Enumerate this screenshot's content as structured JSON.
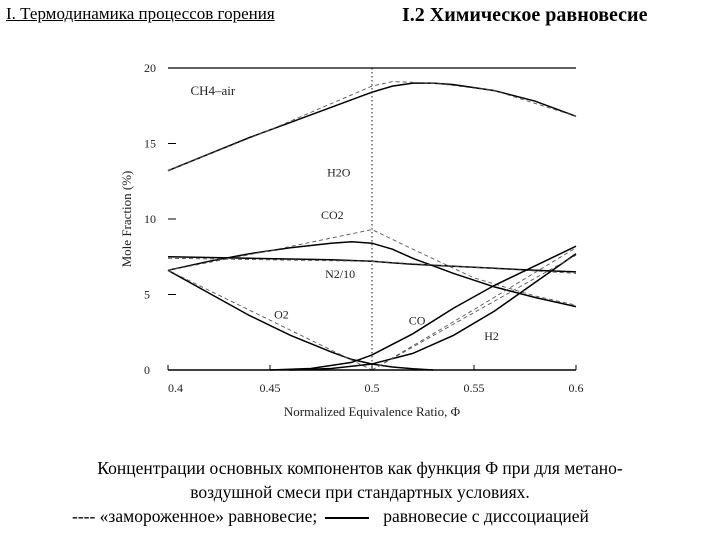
{
  "header": {
    "left": "I. Термодинамика процессов горения",
    "right": "I.2 Химическое равновесие"
  },
  "caption": {
    "line1": "Концентрации основных компонентов как функция Φ при для метано-",
    "line2": "воздушной смеси при стандартных условиях.",
    "line3_frozen": "---- «замороженное» равновесие;",
    "line3_dissoc": "равновесие с диссоциацией"
  },
  "chart_data": {
    "type": "line",
    "xlabel": "Normalized Equivalence Ratio, Φ",
    "ylabel": "Mole Fraction (%)",
    "xlim": [
      0.4,
      0.6
    ],
    "ylim": [
      0,
      20
    ],
    "xticks": [
      "0.4",
      "0.45",
      "0.5",
      "0.55",
      "0.6"
    ],
    "yticks": [
      "0",
      "5",
      "10",
      "15",
      "20"
    ],
    "stoich_x": 0.5,
    "annotation": "CH4–air",
    "series": [
      {
        "name": "H2O",
        "label": "H2O",
        "style": "solid",
        "x": [
          0.4,
          0.42,
          0.44,
          0.46,
          0.48,
          0.5,
          0.51,
          0.52,
          0.53,
          0.54,
          0.56,
          0.58,
          0.6
        ],
        "y": [
          13.2,
          14.3,
          15.4,
          16.4,
          17.4,
          18.4,
          18.8,
          19.0,
          19.0,
          18.9,
          18.5,
          17.8,
          16.8
        ]
      },
      {
        "name": "H2O",
        "label": "",
        "style": "dashed",
        "x": [
          0.4,
          0.45,
          0.5,
          0.51,
          0.53,
          0.56,
          0.6
        ],
        "y": [
          13.2,
          15.9,
          18.8,
          19.1,
          19.0,
          18.5,
          16.8
        ]
      },
      {
        "name": "CO2",
        "label": "CO2",
        "style": "solid",
        "x": [
          0.4,
          0.42,
          0.44,
          0.46,
          0.48,
          0.49,
          0.5,
          0.51,
          0.52,
          0.54,
          0.56,
          0.58,
          0.6
        ],
        "y": [
          6.6,
          7.2,
          7.7,
          8.1,
          8.4,
          8.5,
          8.4,
          8.0,
          7.4,
          6.4,
          5.5,
          4.8,
          4.2
        ]
      },
      {
        "name": "CO2",
        "label": "",
        "style": "dashed",
        "x": [
          0.4,
          0.45,
          0.5,
          0.52,
          0.55,
          0.58,
          0.6
        ],
        "y": [
          6.6,
          7.9,
          9.3,
          8.0,
          6.1,
          4.9,
          4.3
        ]
      },
      {
        "name": "N2/10",
        "label": "N2/10",
        "style": "solid",
        "x": [
          0.4,
          0.44,
          0.48,
          0.5,
          0.52,
          0.55,
          0.58,
          0.6
        ],
        "y": [
          7.5,
          7.4,
          7.3,
          7.2,
          7.0,
          6.8,
          6.6,
          6.5
        ]
      },
      {
        "name": "N2/10",
        "label": "",
        "style": "dashed",
        "x": [
          0.4,
          0.5,
          0.6
        ],
        "y": [
          7.4,
          7.2,
          6.4
        ]
      },
      {
        "name": "O2",
        "label": "O2",
        "style": "solid",
        "x": [
          0.4,
          0.42,
          0.44,
          0.46,
          0.48,
          0.49,
          0.5,
          0.51,
          0.52,
          0.53
        ],
        "y": [
          6.6,
          5.1,
          3.6,
          2.3,
          1.2,
          0.7,
          0.4,
          0.2,
          0.08,
          0.0
        ]
      },
      {
        "name": "O2",
        "label": "",
        "style": "dashed",
        "x": [
          0.4,
          0.45,
          0.5,
          0.52
        ],
        "y": [
          6.6,
          3.3,
          0.0,
          0.0
        ]
      },
      {
        "name": "CO",
        "label": "CO",
        "style": "solid",
        "x": [
          0.45,
          0.47,
          0.49,
          0.5,
          0.52,
          0.54,
          0.56,
          0.58,
          0.6
        ],
        "y": [
          0.0,
          0.1,
          0.5,
          1.0,
          2.4,
          4.1,
          5.6,
          6.9,
          8.2
        ]
      },
      {
        "name": "CO",
        "label": "",
        "style": "dashed",
        "x": [
          0.5,
          0.55,
          0.6
        ],
        "y": [
          0.0,
          4.0,
          8.1
        ]
      },
      {
        "name": "H2",
        "label": "H2",
        "style": "solid",
        "x": [
          0.46,
          0.48,
          0.5,
          0.52,
          0.54,
          0.56,
          0.58,
          0.6
        ],
        "y": [
          0.0,
          0.1,
          0.4,
          1.1,
          2.3,
          3.9,
          5.8,
          7.7
        ]
      },
      {
        "name": "H2",
        "label": "",
        "style": "dashed",
        "x": [
          0.5,
          0.55,
          0.6
        ],
        "y": [
          0.0,
          3.8,
          7.6
        ]
      },
      {
        "name": "",
        "label": "",
        "style": "solid",
        "x": [
          0.4,
          0.45,
          0.5,
          0.54,
          0.57,
          0.6
        ],
        "y": [
          0.0,
          0.0,
          0.0,
          0.0,
          0.0,
          0.0
        ]
      }
    ]
  }
}
